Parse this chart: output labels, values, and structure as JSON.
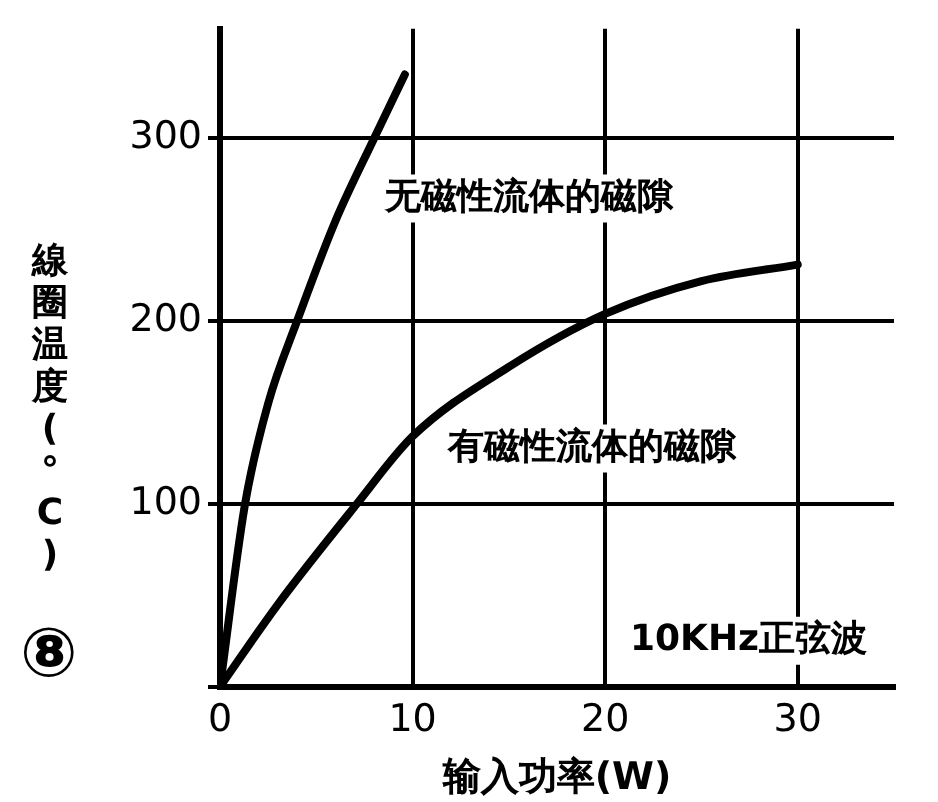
{
  "chart_data": {
    "type": "line",
    "xlabel": "输入功率(W)",
    "ylabel": "線圈温度(°C)",
    "xlim": [
      0,
      35
    ],
    "xticks": [
      0,
      10,
      20,
      30
    ],
    "ylim": [
      0,
      360
    ],
    "yticks": [
      {
        "value": 0,
        "label": null
      },
      100,
      200,
      300
    ],
    "series": [
      {
        "name": "无磁性流体的磁隙",
        "color": "#000000",
        "x": [
          0,
          1.3,
          2.5,
          4,
          6,
          8,
          9.6
        ],
        "values": [
          0,
          100,
          155,
          200,
          255,
          300,
          335
        ]
      },
      {
        "name": "有磁性流体的磁隙",
        "color": "#000000",
        "x": [
          0,
          3,
          7.1,
          10,
          15,
          20,
          25,
          30
        ],
        "values": [
          0,
          45,
          100,
          137,
          175,
          204,
          222,
          231
        ]
      }
    ],
    "grid": true,
    "legend": false,
    "marker": "none",
    "line_style": "solid",
    "annotations": [
      {
        "text": "10KHz正弦波"
      },
      {
        "text": "⑧"
      }
    ]
  }
}
